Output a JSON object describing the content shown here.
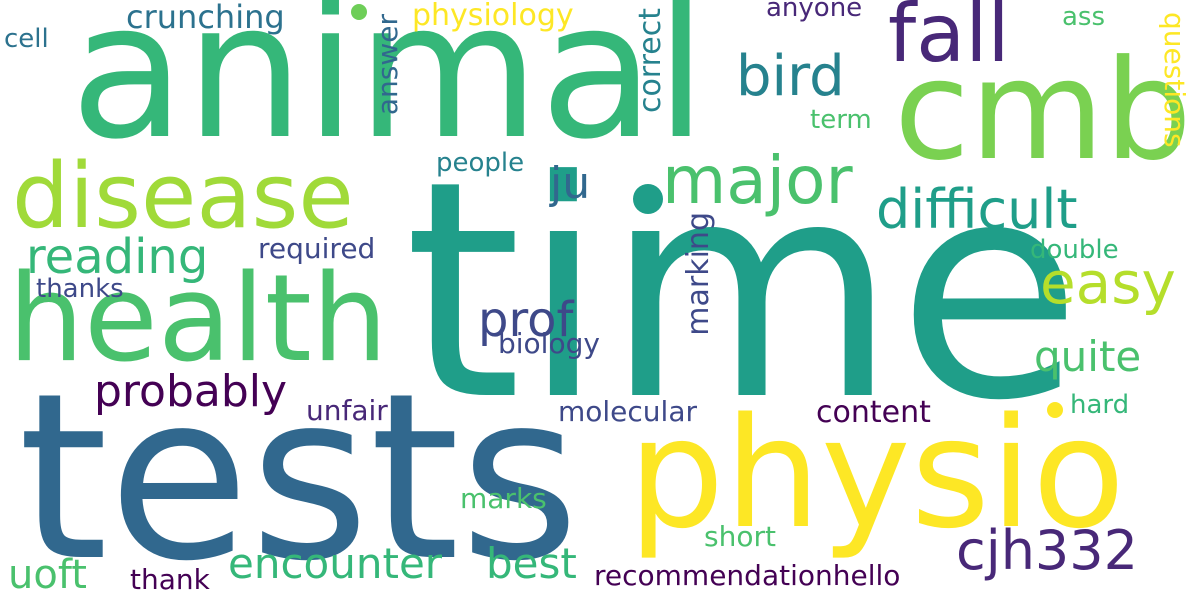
{
  "cloud": {
    "w_time": "time",
    "w_tests": "tests",
    "w_animal": "animal",
    "w_physio": "physio",
    "w_health": "health",
    "w_cmb": "cmb",
    "w_disease": "disease",
    "w_major": "major",
    "w_fall": "fall",
    "w_difficult": "difficult",
    "w_bird": "bird",
    "w_cjh332": "cjh332",
    "w_easy": "easy",
    "w_reading": "reading",
    "w_encounter": "encounter",
    "w_best": "best",
    "w_probably": "probably",
    "w_prof": "prof",
    "w_quite": "quite",
    "w_ju": "ju",
    "w_uoft": "uoft",
    "w_crunching": "crunching",
    "w_physiology": "physiology",
    "w_recommendationhello": "recommendationhello",
    "w_correct": "correct",
    "w_answer": "answer",
    "w_marking": "marking",
    "w_questions": "questions",
    "w_content": "content",
    "w_molecular": "molecular",
    "w_unfair": "unfair",
    "w_biology": "biology",
    "w_marks": "marks",
    "w_short": "short",
    "w_thank": "thank",
    "w_required": "required",
    "w_people": "people",
    "w_double": "double",
    "w_thanks": "thanks",
    "w_term": "term",
    "w_anyone": "anyone",
    "w_cell": "cell",
    "w_ass": "ass",
    "w_hard": "hard"
  },
  "colors": {
    "dark_purple": "#440154",
    "indigo": "#482878",
    "slate_blue": "#3e4989",
    "steel_blue": "#31688e",
    "teal_blue": "#26828e",
    "teal": "#1f9e89",
    "sea_green": "#35b779",
    "green": "#6ece58",
    "lime": "#b5de2b",
    "yellow": "#fde725"
  }
}
